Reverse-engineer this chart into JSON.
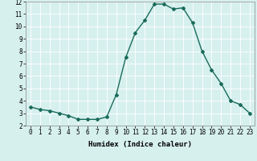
{
  "x": [
    0,
    1,
    2,
    3,
    4,
    5,
    6,
    7,
    8,
    9,
    10,
    11,
    12,
    13,
    14,
    15,
    16,
    17,
    18,
    19,
    20,
    21,
    22,
    23
  ],
  "y": [
    3.5,
    3.3,
    3.2,
    3.0,
    2.8,
    2.5,
    2.5,
    2.5,
    2.7,
    4.5,
    7.5,
    9.5,
    10.5,
    11.8,
    11.8,
    11.4,
    11.5,
    10.3,
    8.0,
    6.5,
    5.4,
    4.0,
    3.7,
    3.0
  ],
  "line_color": "#1a6b5a",
  "marker": "D",
  "marker_size": 2.0,
  "line_width": 1.0,
  "bg_color": "#d6f0ee",
  "grid_color": "#ffffff",
  "xlabel": "Humidex (Indice chaleur)",
  "xlabel_fontsize": 6.5,
  "tick_fontsize": 5.5,
  "ylim": [
    2,
    12
  ],
  "xlim": [
    -0.5,
    23.5
  ],
  "yticks": [
    2,
    3,
    4,
    5,
    6,
    7,
    8,
    9,
    10,
    11,
    12
  ],
  "xticks": [
    0,
    1,
    2,
    3,
    4,
    5,
    6,
    7,
    8,
    9,
    10,
    11,
    12,
    13,
    14,
    15,
    16,
    17,
    18,
    19,
    20,
    21,
    22,
    23
  ]
}
